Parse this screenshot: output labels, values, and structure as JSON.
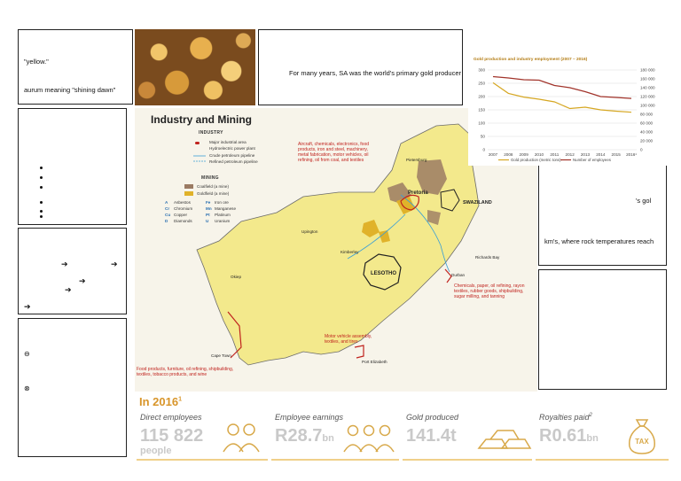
{
  "left_column": {
    "box1": {
      "line1": "\"yellow.\"",
      "line2": "aurum meaning \"shining dawn\""
    },
    "box4_glyphs": {
      "circle_a": "⊖",
      "circle_b": "⊗"
    }
  },
  "top_text": {
    "primary_producer": "For many years, SA was the world's primary gold producer"
  },
  "right_column": {
    "fragment1": "'s gol",
    "fragment2": "km's, where rock temperatures reach"
  },
  "map": {
    "title": "Industry and Mining",
    "legend": {
      "industry_heading": "INDUSTRY",
      "industry_items": [
        "Major industrial area",
        "Hydroelectric power plant",
        "Crude petroleum pipeline",
        "Refined petroleum pipeline"
      ],
      "mining_heading": "MINING",
      "mining_items": [
        "Coalfield (a mine)",
        "Goldfield (a mine)"
      ],
      "minerals": [
        {
          "code": "A",
          "name": "Asbestos"
        },
        {
          "code": "Fe",
          "name": "Iron ore"
        },
        {
          "code": "Cr",
          "name": "Chromium"
        },
        {
          "code": "Mn",
          "name": "Manganese"
        },
        {
          "code": "Cu",
          "name": "Copper"
        },
        {
          "code": "Pt",
          "name": "Platinum"
        },
        {
          "code": "D",
          "name": "Diamonds"
        },
        {
          "code": "U",
          "name": "Uranium"
        }
      ]
    },
    "notes": {
      "pretoria": "Aircraft, chemicals, electronics, food products, iron and steel, machinery, metal fabrication, motor vehicles, oil refining, oil from coal, and textiles",
      "durban": "Chemicals, paper, oil refining, rayon textiles, rubber goods, shipbuilding, sugar milling, and tanning",
      "port_elizabeth": "Motor vehicle assembly, textiles, and tires",
      "cape_town": "Food products, furniture, oil refining, shipbuilding, textiles, tobacco products, and wine"
    },
    "places": {
      "pretoria": "Pretoria",
      "swaziland": "SWAZILAND",
      "lesotho": "LESOTHO",
      "cape_town": "Cape Town",
      "port_elizabeth": "Port Elizabeth",
      "durban": "Durban",
      "kimberley": "Kimberley",
      "richards_bay": "Richards Bay",
      "pietersburg": "Pietersburg",
      "upington": "Upington",
      "okiep": "Okiep"
    }
  },
  "chart_data": {
    "type": "line",
    "title": "Gold production and industry employment (2007 – 2016)",
    "x": [
      2007,
      2008,
      2009,
      2010,
      2011,
      2012,
      2013,
      2014,
      2015,
      2016
    ],
    "x_tick_labels": [
      "2007",
      "2008",
      "2009",
      "2010",
      "2011",
      "2012",
      "2013",
      "2014",
      "2015",
      "2016¹"
    ],
    "left_ticks": [
      "300",
      "250",
      "200",
      "150",
      "100",
      "50",
      "0"
    ],
    "right_ticks": [
      "180 000",
      "160 000",
      "140 000",
      "120 000",
      "100 000",
      "80 000",
      "60 000",
      "40 000",
      "20 000",
      "0"
    ],
    "ylim_left": [
      0,
      300
    ],
    "ylim_right": [
      0,
      180000
    ],
    "series": [
      {
        "name": "Gold production (metric tons)",
        "color": "#d6a722",
        "axis": "left",
        "values": [
          252,
          212,
          198,
          190,
          180,
          155,
          160,
          150,
          145,
          141
        ]
      },
      {
        "name": "Number of employees",
        "color": "#a1332a",
        "axis": "right",
        "values": [
          165000,
          162000,
          158000,
          157000,
          145000,
          140000,
          131000,
          120000,
          118000,
          115822
        ]
      }
    ],
    "grid": true,
    "legend_position": "bottom"
  },
  "stats": {
    "title": "In 2016",
    "title_sup": "1",
    "items": [
      {
        "label": "Direct employees",
        "value": "115 822",
        "unit": "",
        "sub": "people"
      },
      {
        "label": "Employee earnings",
        "value": "R28.7",
        "unit": "bn",
        "sub": ""
      },
      {
        "label": "Gold produced",
        "value": "141.4t",
        "unit": "",
        "sub": ""
      },
      {
        "label": "Royalties paid",
        "label_sup": "2",
        "value": "R0.61",
        "unit": "bn",
        "sub": ""
      }
    ],
    "tax_label": "TAX"
  },
  "colors": {
    "gold": "#d8952a",
    "map_land": "#f3e98c",
    "industry_red": "#c0231e"
  }
}
